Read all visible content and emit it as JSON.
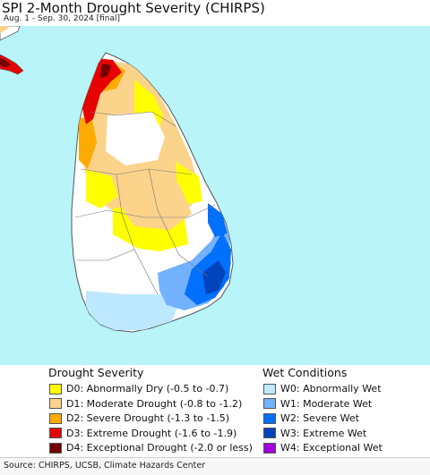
{
  "header": {
    "title": "SPI 2-Month Drought Severity (CHIRPS)",
    "subtitle": "Aug. 1 - Sep. 30, 2024 [final]"
  },
  "map": {
    "ocean_color": "#b8f4f8",
    "land_color": "#ffffff",
    "border_color": "#555555"
  },
  "legend": {
    "drought": {
      "heading": "Drought Severity",
      "items": [
        {
          "label": "D0: Abnormally Dry (-0.5 to -0.7)",
          "color": "#ffff00"
        },
        {
          "label": "D1: Moderate Drought (-0.8 to -1.2)",
          "color": "#fcd38b"
        },
        {
          "label": "D2: Severe Drought (-1.3 to -1.5)",
          "color": "#ffaa00"
        },
        {
          "label": "D3: Extreme Drought (-1.6 to -1.9)",
          "color": "#e60000"
        },
        {
          "label": "D4: Exceptional Drought (-2.0 or less)",
          "color": "#730000"
        }
      ]
    },
    "wet": {
      "heading": "Wet Conditions",
      "items": [
        {
          "label": "W0: Abnormally Wet",
          "color": "#bee8ff"
        },
        {
          "label": "W1: Moderate Wet",
          "color": "#73b2ff"
        },
        {
          "label": "W2: Severe Wet",
          "color": "#0070ff"
        },
        {
          "label": "W3: Extreme Wet",
          "color": "#0044bb"
        },
        {
          "label": "W4: Exceptional Wet",
          "color": "#a000dd"
        }
      ]
    }
  },
  "footer": {
    "source": "Source: CHIRPS, UCSB, Climate Hazards Center"
  }
}
